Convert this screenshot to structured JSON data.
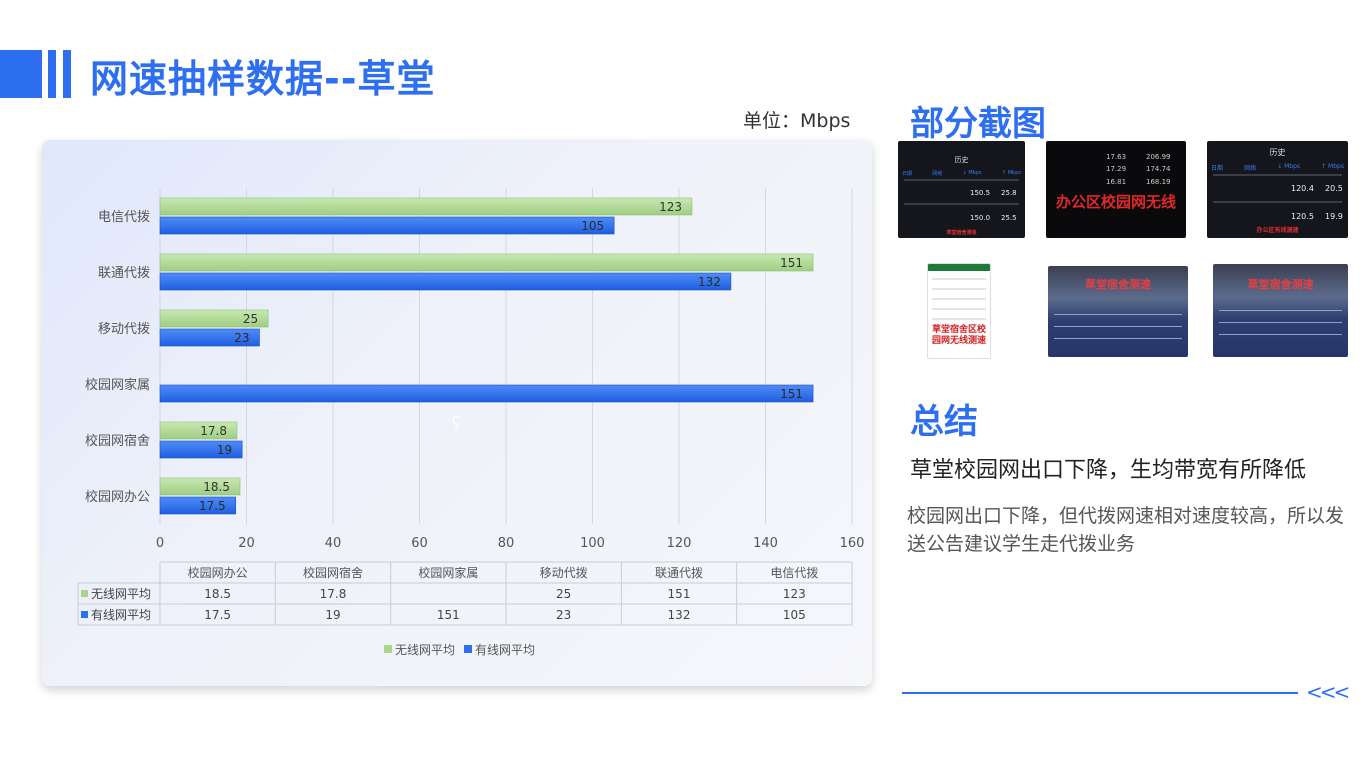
{
  "header": {
    "title": "网速抽样数据--草堂"
  },
  "unit_label": "单位：Mbps",
  "colors": {
    "accent": "#2d6ff0",
    "wireless": "#a8d58c",
    "wired": "#2d6ff0"
  },
  "chart_data": {
    "type": "bar",
    "orientation": "horizontal",
    "categories": [
      "校园网办公",
      "校园网宿舍",
      "校园网家属",
      "移动代拨",
      "联通代拨",
      "电信代拨"
    ],
    "series": [
      {
        "name": "无线网平均",
        "values": [
          18.5,
          17.8,
          null,
          25,
          151,
          123
        ]
      },
      {
        "name": "有线网平均",
        "values": [
          17.5,
          19,
          151,
          23,
          132,
          105
        ]
      }
    ],
    "xlim": [
      0,
      160
    ],
    "x_ticks": [
      0,
      20,
      40,
      60,
      80,
      100,
      120,
      140,
      160
    ],
    "grid": true,
    "data_table": true,
    "legend_position": "bottom",
    "stray_glyph": "ç"
  },
  "screenshots": {
    "heading": "部分截图",
    "items": [
      {
        "name": "history-wifi",
        "header": "历史",
        "cols": [
          "日期",
          "网络",
          "↓ Mbps",
          "↑ Mbps"
        ],
        "rows": [
          [
            "150.5",
            "25.8"
          ],
          [
            "150.0",
            "25.5"
          ]
        ],
        "caption": "草堂宿舍测速"
      },
      {
        "name": "office-wireless",
        "values": [
          [
            "17.63",
            "206.99"
          ],
          [
            "17.29",
            "174.74"
          ],
          [
            "16.81",
            "168.19"
          ]
        ],
        "caption": "办公区校园网无线"
      },
      {
        "name": "history-dorm",
        "header": "历史",
        "cols": [
          "日期",
          "网络",
          "↓ Mbps",
          "↑ Mbps"
        ],
        "rows": [
          [
            "120.4",
            "20.5"
          ],
          [
            "120.5",
            "19.9"
          ]
        ],
        "caption": "办公区有线测速"
      },
      {
        "name": "dorm-wireless-test",
        "caption": "草堂宿舍区校园网无线测速"
      },
      {
        "name": "photo-screen-1",
        "caption": "草堂宿舍测速"
      },
      {
        "name": "photo-screen-2",
        "caption": "草堂宿舍测速"
      }
    ]
  },
  "summary": {
    "heading": "总结",
    "title": "草堂校园网出口下降，生均带宽有所降低",
    "body": "校园网出口下降，但代拨网速相对速度较高，所以发送公告建议学生走代拨业务"
  },
  "footer": {
    "arrows": "<<<"
  }
}
